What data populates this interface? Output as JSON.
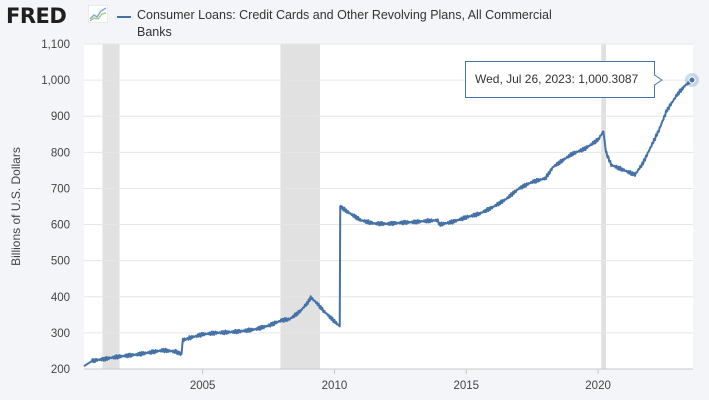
{
  "header": {
    "logo_text": "FRED",
    "logo_icon": "fred-graph-icon",
    "series_title": "Consumer Loans: Credit Cards and Other Revolving Plans, All Commercial Banks"
  },
  "tooltip": {
    "date": "Wed, Jul 26, 2023:",
    "value": "1,000.3087"
  },
  "colors": {
    "series": "#4572a7",
    "recession": "#e1e1e1",
    "background": "#f4f5f8",
    "grid": "#e6e6e6"
  },
  "chart_data": {
    "type": "line",
    "title": "Consumer Loans: Credit Cards and Other Revolving Plans, All Commercial Banks",
    "ylabel": "Billions of U.S. Dollars",
    "xlabel": "",
    "ylim": [
      200,
      1100
    ],
    "xlim": [
      2000.5,
      2023.6
    ],
    "yticks": [
      200,
      300,
      400,
      500,
      600,
      700,
      800,
      900,
      1000,
      1100
    ],
    "ytick_labels": [
      "200",
      "300",
      "400",
      "500",
      "600",
      "700",
      "800",
      "900",
      "1,000",
      "1,100"
    ],
    "xticks": [
      2005,
      2010,
      2015,
      2020
    ],
    "xtick_labels": [
      "2005",
      "2010",
      "2015",
      "2020"
    ],
    "grid": "horizontal",
    "recessions": [
      [
        2001.2,
        2001.85
      ],
      [
        2007.95,
        2009.45
      ],
      [
        2020.12,
        2020.3
      ]
    ],
    "series": [
      {
        "name": "Consumer Loans: Credit Cards and Other Revolving Plans, All Commercial Banks",
        "points": [
          [
            2000.5,
            208
          ],
          [
            2000.8,
            222
          ],
          [
            2001.0,
            225
          ],
          [
            2001.3,
            228
          ],
          [
            2001.6,
            232
          ],
          [
            2002.0,
            236
          ],
          [
            2002.5,
            240
          ],
          [
            2003.0,
            246
          ],
          [
            2003.5,
            252
          ],
          [
            2004.0,
            248
          ],
          [
            2004.2,
            240
          ],
          [
            2004.25,
            280
          ],
          [
            2004.6,
            288
          ],
          [
            2005.0,
            296
          ],
          [
            2005.5,
            300
          ],
          [
            2006.0,
            302
          ],
          [
            2006.5,
            305
          ],
          [
            2007.0,
            310
          ],
          [
            2007.5,
            320
          ],
          [
            2008.0,
            335
          ],
          [
            2008.3,
            338
          ],
          [
            2008.7,
            360
          ],
          [
            2009.0,
            385
          ],
          [
            2009.1,
            398
          ],
          [
            2009.3,
            385
          ],
          [
            2009.6,
            360
          ],
          [
            2010.0,
            332
          ],
          [
            2010.2,
            318
          ],
          [
            2010.22,
            650
          ],
          [
            2010.5,
            635
          ],
          [
            2011.0,
            612
          ],
          [
            2011.5,
            603
          ],
          [
            2012.0,
            602
          ],
          [
            2012.5,
            605
          ],
          [
            2013.0,
            607
          ],
          [
            2013.5,
            610
          ],
          [
            2013.9,
            612
          ],
          [
            2014.0,
            600
          ],
          [
            2014.5,
            608
          ],
          [
            2015.0,
            620
          ],
          [
            2015.5,
            630
          ],
          [
            2016.0,
            648
          ],
          [
            2016.5,
            670
          ],
          [
            2017.0,
            700
          ],
          [
            2017.5,
            718
          ],
          [
            2018.0,
            728
          ],
          [
            2018.3,
            760
          ],
          [
            2018.6,
            775
          ],
          [
            2019.0,
            795
          ],
          [
            2019.5,
            810
          ],
          [
            2020.0,
            835
          ],
          [
            2020.2,
            858
          ],
          [
            2020.3,
            800
          ],
          [
            2020.5,
            765
          ],
          [
            2021.0,
            750
          ],
          [
            2021.4,
            738
          ],
          [
            2021.7,
            770
          ],
          [
            2022.0,
            815
          ],
          [
            2022.3,
            860
          ],
          [
            2022.6,
            915
          ],
          [
            2023.0,
            960
          ],
          [
            2023.3,
            985
          ],
          [
            2023.56,
            1000.3087
          ]
        ]
      }
    ],
    "highlight": {
      "x": 2023.56,
      "y": 1000.3087
    }
  }
}
